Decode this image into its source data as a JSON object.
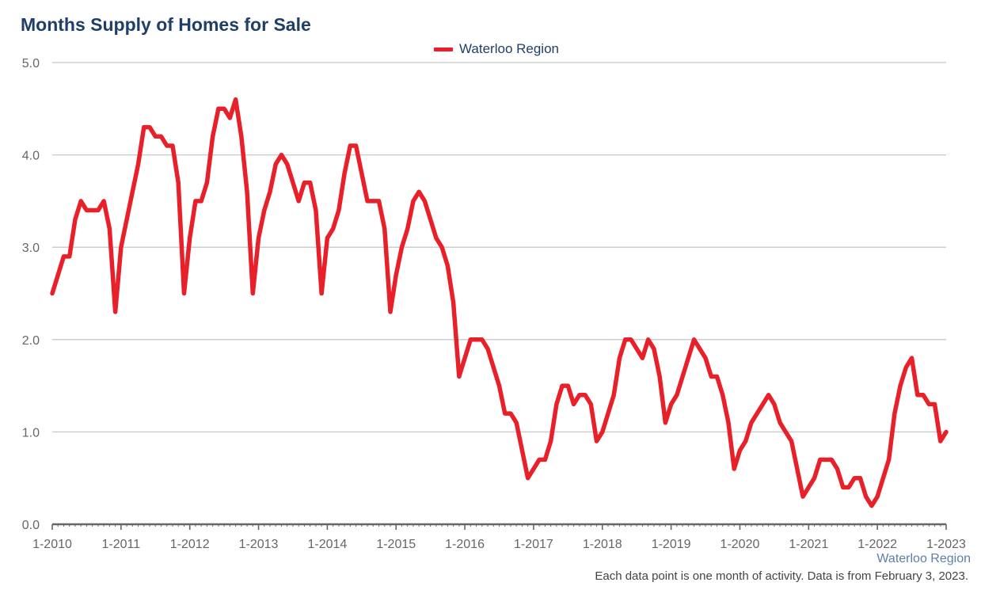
{
  "chart_data": {
    "type": "line",
    "title": "Months Supply of Homes for Sale",
    "xlabel": "",
    "ylabel": "",
    "ylim": [
      0,
      5
    ],
    "yticks": [
      "0.0",
      "1.0",
      "2.0",
      "3.0",
      "4.0",
      "5.0"
    ],
    "xticks": [
      "1-2010",
      "1-2011",
      "1-2012",
      "1-2013",
      "1-2014",
      "1-2015",
      "1-2016",
      "1-2017",
      "1-2018",
      "1-2019",
      "1-2020",
      "1-2021",
      "1-2022",
      "1-2023"
    ],
    "x_range": [
      "2010-01",
      "2023-01"
    ],
    "grid": "horizontal",
    "legend": "top-center",
    "series": [
      {
        "name": "Waterloo Region",
        "color": "#e8202a",
        "x": [
          "2010-01",
          "2010-02",
          "2010-03",
          "2010-04",
          "2010-05",
          "2010-06",
          "2010-07",
          "2010-08",
          "2010-09",
          "2010-10",
          "2010-11",
          "2010-12",
          "2011-01",
          "2011-02",
          "2011-03",
          "2011-04",
          "2011-05",
          "2011-06",
          "2011-07",
          "2011-08",
          "2011-09",
          "2011-10",
          "2011-11",
          "2011-12",
          "2012-01",
          "2012-02",
          "2012-03",
          "2012-04",
          "2012-05",
          "2012-06",
          "2012-07",
          "2012-08",
          "2012-09",
          "2012-10",
          "2012-11",
          "2012-12",
          "2013-01",
          "2013-02",
          "2013-03",
          "2013-04",
          "2013-05",
          "2013-06",
          "2013-07",
          "2013-08",
          "2013-09",
          "2013-10",
          "2013-11",
          "2013-12",
          "2014-01",
          "2014-02",
          "2014-03",
          "2014-04",
          "2014-05",
          "2014-06",
          "2014-07",
          "2014-08",
          "2014-09",
          "2014-10",
          "2014-11",
          "2014-12",
          "2015-01",
          "2015-02",
          "2015-03",
          "2015-04",
          "2015-05",
          "2015-06",
          "2015-07",
          "2015-08",
          "2015-09",
          "2015-10",
          "2015-11",
          "2015-12",
          "2016-01",
          "2016-02",
          "2016-03",
          "2016-04",
          "2016-05",
          "2016-06",
          "2016-07",
          "2016-08",
          "2016-09",
          "2016-10",
          "2016-11",
          "2016-12",
          "2017-01",
          "2017-02",
          "2017-03",
          "2017-04",
          "2017-05",
          "2017-06",
          "2017-07",
          "2017-08",
          "2017-09",
          "2017-10",
          "2017-11",
          "2017-12",
          "2018-01",
          "2018-02",
          "2018-03",
          "2018-04",
          "2018-05",
          "2018-06",
          "2018-07",
          "2018-08",
          "2018-09",
          "2018-10",
          "2018-11",
          "2018-12",
          "2019-01",
          "2019-02",
          "2019-03",
          "2019-04",
          "2019-05",
          "2019-06",
          "2019-07",
          "2019-08",
          "2019-09",
          "2019-10",
          "2019-11",
          "2019-12",
          "2020-01",
          "2020-02",
          "2020-03",
          "2020-04",
          "2020-05",
          "2020-06",
          "2020-07",
          "2020-08",
          "2020-09",
          "2020-10",
          "2020-11",
          "2020-12",
          "2021-01",
          "2021-02",
          "2021-03",
          "2021-04",
          "2021-05",
          "2021-06",
          "2021-07",
          "2021-08",
          "2021-09",
          "2021-10",
          "2021-11",
          "2021-12",
          "2022-01",
          "2022-02",
          "2022-03",
          "2022-04",
          "2022-05",
          "2022-06",
          "2022-07",
          "2022-08",
          "2022-09",
          "2022-10",
          "2022-11",
          "2022-12",
          "2023-01"
        ],
        "values": [
          2.5,
          2.7,
          2.9,
          2.9,
          3.3,
          3.5,
          3.4,
          3.4,
          3.4,
          3.5,
          3.2,
          2.3,
          3.0,
          3.3,
          3.6,
          3.9,
          4.3,
          4.3,
          4.2,
          4.2,
          4.1,
          4.1,
          3.7,
          2.5,
          3.1,
          3.5,
          3.5,
          3.7,
          4.2,
          4.5,
          4.5,
          4.4,
          4.6,
          4.2,
          3.6,
          2.5,
          3.1,
          3.4,
          3.6,
          3.9,
          4.0,
          3.9,
          3.7,
          3.5,
          3.7,
          3.7,
          3.4,
          2.5,
          3.1,
          3.2,
          3.4,
          3.8,
          4.1,
          4.1,
          3.8,
          3.5,
          3.5,
          3.5,
          3.2,
          2.3,
          2.7,
          3.0,
          3.2,
          3.5,
          3.6,
          3.5,
          3.3,
          3.1,
          3.0,
          2.8,
          2.4,
          1.6,
          1.8,
          2.0,
          2.0,
          2.0,
          1.9,
          1.7,
          1.5,
          1.2,
          1.2,
          1.1,
          0.8,
          0.5,
          0.6,
          0.7,
          0.7,
          0.9,
          1.3,
          1.5,
          1.5,
          1.3,
          1.4,
          1.4,
          1.3,
          0.9,
          1.0,
          1.2,
          1.4,
          1.8,
          2.0,
          2.0,
          1.9,
          1.8,
          2.0,
          1.9,
          1.6,
          1.1,
          1.3,
          1.4,
          1.6,
          1.8,
          2.0,
          1.9,
          1.8,
          1.6,
          1.6,
          1.4,
          1.1,
          0.6,
          0.8,
          0.9,
          1.1,
          1.2,
          1.3,
          1.4,
          1.3,
          1.1,
          1.0,
          0.9,
          0.6,
          0.3,
          0.4,
          0.5,
          0.7,
          0.7,
          0.7,
          0.6,
          0.4,
          0.4,
          0.5,
          0.5,
          0.3,
          0.2,
          0.3,
          0.5,
          0.7,
          1.2,
          1.5,
          1.7,
          1.8,
          1.4,
          1.4,
          1.3,
          1.3,
          0.9,
          1.0
        ]
      }
    ]
  },
  "legend": {
    "label": "Waterloo Region"
  },
  "source_label": "Waterloo Region",
  "footnote": "Each data point is one month of activity. Data is from February 3, 2023."
}
